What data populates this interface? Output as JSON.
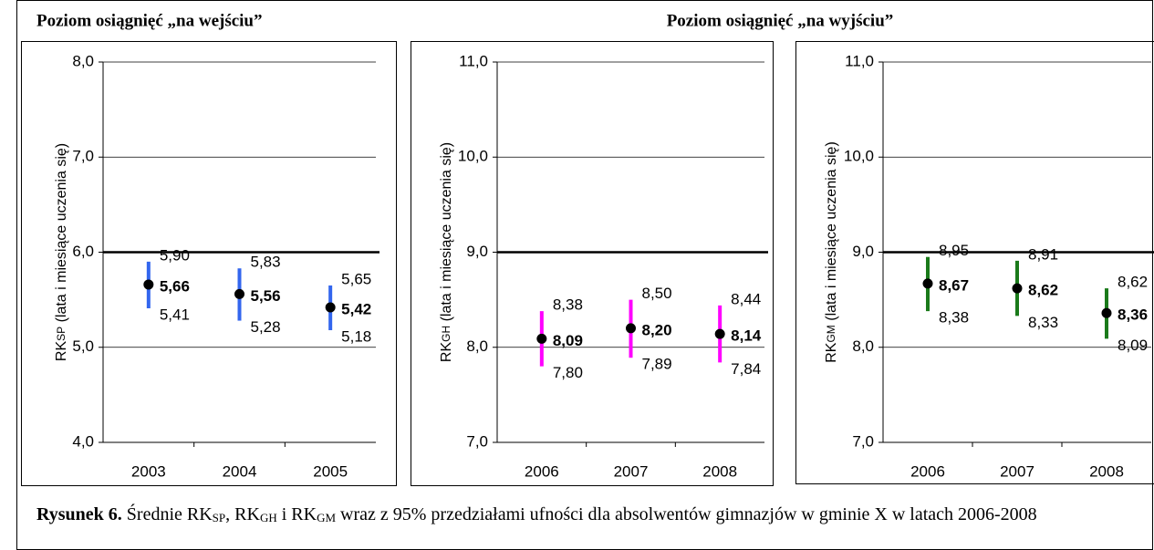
{
  "headings": [
    "Poziom osiągnięć „na wejściu”",
    "Poziom osiągnięć „na wyjściu”"
  ],
  "caption": {
    "label": "Rysunek 6.",
    "segments": [
      " Średnie RK",
      "SP",
      ", RK",
      "GH",
      " i RK",
      "GM",
      " wraz z 95% przedziałami ufności dla absolwentów gimnazjów w gminie X w latach 2006-2008"
    ]
  },
  "chart_data": [
    {
      "type": "errorbar",
      "ylabel": [
        "RK",
        "SP",
        " (lata i miesiące uczenia się)"
      ],
      "color": "#3366ee",
      "categories": [
        "2003",
        "2004",
        "2005"
      ],
      "values": [
        5.66,
        5.56,
        5.42
      ],
      "value_labels": [
        "5,66",
        "5,56",
        "5,42"
      ],
      "upper": [
        5.9,
        5.83,
        5.65
      ],
      "upper_labels": [
        "5,90",
        "5,83",
        "5,65"
      ],
      "lower": [
        5.41,
        5.28,
        5.18
      ],
      "lower_labels": [
        "5,41",
        "5,28",
        "5,18"
      ],
      "ylim": [
        4,
        8
      ],
      "yticks": [
        {
          "value": 4,
          "label": "4,0"
        },
        {
          "value": 5,
          "label": "5,0"
        },
        {
          "value": 6,
          "label": "6,0"
        },
        {
          "value": 7,
          "label": "7,0"
        },
        {
          "value": 8,
          "label": "8,0"
        }
      ],
      "reference_line": 6,
      "grid": true
    },
    {
      "type": "errorbar",
      "ylabel": [
        "RK",
        "GH",
        " (lata i miesiące uczenia się)"
      ],
      "color": "#ff00ff",
      "categories": [
        "2006",
        "2007",
        "2008"
      ],
      "values": [
        8.09,
        8.2,
        8.14
      ],
      "value_labels": [
        "8,09",
        "8,20",
        "8,14"
      ],
      "upper": [
        8.38,
        8.5,
        8.44
      ],
      "upper_labels": [
        "8,38",
        "8,50",
        "8,44"
      ],
      "lower": [
        7.8,
        7.89,
        7.84
      ],
      "lower_labels": [
        "7,80",
        "7,89",
        "7,84"
      ],
      "ylim": [
        7,
        11
      ],
      "yticks": [
        {
          "value": 7,
          "label": "7,0"
        },
        {
          "value": 8,
          "label": "8,0"
        },
        {
          "value": 9,
          "label": "9,0"
        },
        {
          "value": 10,
          "label": "10,0"
        },
        {
          "value": 11,
          "label": "11,0"
        }
      ],
      "reference_line": 9,
      "grid": true
    },
    {
      "type": "errorbar",
      "ylabel": [
        "RK",
        "GM",
        " (lata i miesiące uczenia się)"
      ],
      "color": "#1a7a1a",
      "categories": [
        "2006",
        "2007",
        "2008"
      ],
      "values": [
        8.67,
        8.62,
        8.36
      ],
      "value_labels": [
        "8,67",
        "8,62",
        "8,36"
      ],
      "upper": [
        8.95,
        8.91,
        8.62
      ],
      "upper_labels": [
        "8,95",
        "8,91",
        "8,62"
      ],
      "lower": [
        8.38,
        8.33,
        8.09
      ],
      "lower_labels": [
        "8,38",
        "8,33",
        "8,09"
      ],
      "ylim": [
        7,
        11
      ],
      "yticks": [
        {
          "value": 7,
          "label": "7,0"
        },
        {
          "value": 8,
          "label": "8,0"
        },
        {
          "value": 9,
          "label": "9,0"
        },
        {
          "value": 10,
          "label": "10,0"
        },
        {
          "value": 11,
          "label": "11,0"
        }
      ],
      "reference_line": 9,
      "grid": true
    }
  ]
}
